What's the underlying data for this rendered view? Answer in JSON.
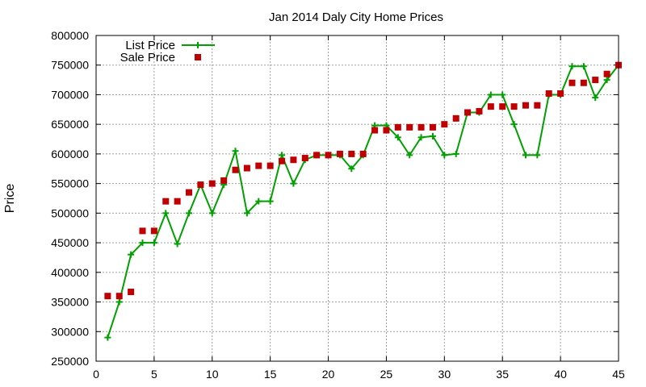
{
  "chart_data": {
    "type": "line",
    "title": "Jan 2014 Daly City Home Prices",
    "xlabel": "",
    "ylabel": "Price",
    "xlim": [
      0,
      45
    ],
    "ylim": [
      250000,
      800000
    ],
    "x_ticks": [
      "0",
      "5",
      "10",
      "15",
      "20",
      "25",
      "30",
      "35",
      "40",
      "45"
    ],
    "y_ticks": [
      "250000",
      "300000",
      "350000",
      "400000",
      "450000",
      "500000",
      "550000",
      "600000",
      "650000",
      "700000",
      "750000",
      "800000"
    ],
    "grid": true,
    "legend_position": "top-left",
    "series": [
      {
        "name": "List Price",
        "style": "line-with-plus-markers",
        "color": "#00a000",
        "x": [
          1,
          2,
          3,
          4,
          5,
          6,
          7,
          8,
          9,
          10,
          11,
          12,
          13,
          14,
          15,
          16,
          17,
          18,
          19,
          20,
          21,
          22,
          23,
          24,
          25,
          26,
          27,
          28,
          29,
          30,
          31,
          32,
          33,
          34,
          35,
          36,
          37,
          38,
          39,
          40,
          41,
          42,
          43,
          44,
          45
        ],
        "y": [
          290000,
          350000,
          430000,
          450000,
          450000,
          500000,
          448000,
          500000,
          548000,
          500000,
          548000,
          605000,
          500000,
          520000,
          520000,
          598000,
          550000,
          590000,
          598000,
          598000,
          598000,
          575000,
          598000,
          648000,
          648000,
          628000,
          598000,
          628000,
          630000,
          598000,
          600000,
          670000,
          670000,
          700000,
          700000,
          650000,
          598000,
          598000,
          700000,
          700000,
          748000,
          748000,
          695000,
          725000,
          750000
        ]
      },
      {
        "name": "Sale Price",
        "style": "square-markers",
        "color": "#c00000",
        "x": [
          1,
          2,
          3,
          4,
          5,
          6,
          7,
          8,
          9,
          10,
          11,
          12,
          13,
          14,
          15,
          16,
          17,
          18,
          19,
          20,
          21,
          22,
          23,
          24,
          25,
          26,
          27,
          28,
          29,
          30,
          31,
          32,
          33,
          34,
          35,
          36,
          37,
          38,
          39,
          40,
          41,
          42,
          43,
          44,
          45
        ],
        "y": [
          360000,
          360000,
          367000,
          470000,
          470000,
          520000,
          520000,
          535000,
          548000,
          550000,
          555000,
          573000,
          576000,
          580000,
          580000,
          588000,
          590000,
          593000,
          598000,
          598000,
          600000,
          600000,
          600000,
          640000,
          640000,
          645000,
          645000,
          645000,
          645000,
          650000,
          660000,
          670000,
          672000,
          680000,
          680000,
          680000,
          682000,
          682000,
          702000,
          702000,
          720000,
          720000,
          725000,
          735000,
          750000
        ]
      }
    ]
  }
}
